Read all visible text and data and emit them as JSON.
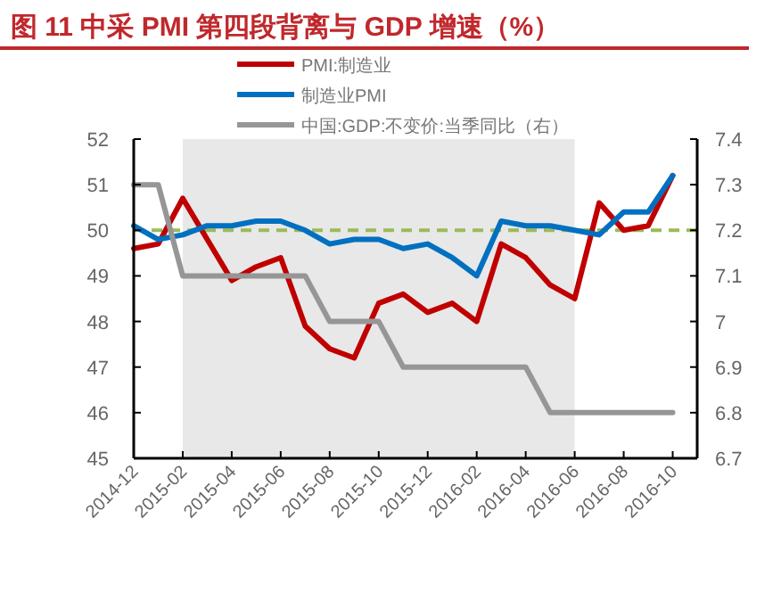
{
  "chart_data": {
    "type": "line",
    "title": "图 11 中采 PMI 第四段背离与 GDP 增速（%）",
    "x": [
      "2014-12",
      "2015-01",
      "2015-02",
      "2015-03",
      "2015-04",
      "2015-05",
      "2015-06",
      "2015-07",
      "2015-08",
      "2015-09",
      "2015-10",
      "2015-11",
      "2015-12",
      "2016-01",
      "2016-02",
      "2016-03",
      "2016-04",
      "2016-05",
      "2016-06",
      "2016-07",
      "2016-08",
      "2016-09",
      "2016-10"
    ],
    "series": [
      {
        "name": "PMI:制造业",
        "color": "#c00000",
        "values": [
          49.6,
          49.7,
          50.7,
          49.8,
          48.9,
          49.2,
          49.4,
          47.9,
          47.4,
          47.2,
          48.4,
          48.6,
          48.2,
          48.4,
          48.0,
          49.7,
          49.4,
          48.8,
          48.5,
          50.6,
          50.0,
          50.1,
          51.2
        ]
      },
      {
        "name": "制造业PMI",
        "color": "#0070c0",
        "values": [
          50.1,
          49.8,
          49.9,
          50.1,
          50.1,
          50.2,
          50.2,
          50.0,
          49.7,
          49.8,
          49.8,
          49.6,
          49.7,
          49.4,
          49.0,
          50.2,
          50.1,
          50.1,
          50.0,
          49.9,
          50.4,
          50.4,
          51.2
        ]
      },
      {
        "name": "中国:GDP:不变价:当季同比（右）",
        "color": "#969696",
        "axis": "y2",
        "values": [
          7.3,
          7.3,
          7.1,
          7.1,
          7.1,
          7.1,
          7.1,
          7.1,
          7.0,
          7.0,
          7.0,
          6.9,
          6.9,
          6.9,
          6.9,
          6.9,
          6.9,
          6.8,
          6.8,
          6.8,
          6.8,
          6.8,
          6.8
        ]
      }
    ],
    "xlim": [
      "2014-12",
      "2016-11"
    ],
    "xticks": [
      "2014-12",
      "2015-02",
      "2015-04",
      "2015-06",
      "2015-08",
      "2015-10",
      "2015-12",
      "2016-02",
      "2016-04",
      "2016-06",
      "2016-08",
      "2016-10"
    ],
    "ylim": [
      45,
      52
    ],
    "yticks": [
      45,
      46,
      47,
      48,
      49,
      50,
      51,
      52
    ],
    "y2lim": [
      6.7,
      7.4
    ],
    "y2ticks": [
      6.7,
      6.8,
      6.9,
      {
        "value": 7,
        "label": "7"
      },
      7.1,
      7.2,
      7.3,
      7.4
    ],
    "bands": [
      {
        "axis": "x",
        "from": "2015-02",
        "to": "2016-06",
        "color": "#e8e8e8"
      }
    ],
    "ref_lines": [
      {
        "axis": "y",
        "value": 50,
        "color": "#9bbb59",
        "line_style": "dashed"
      }
    ],
    "legend": "top",
    "grid": false,
    "line_style": "solid",
    "marker": "none"
  }
}
